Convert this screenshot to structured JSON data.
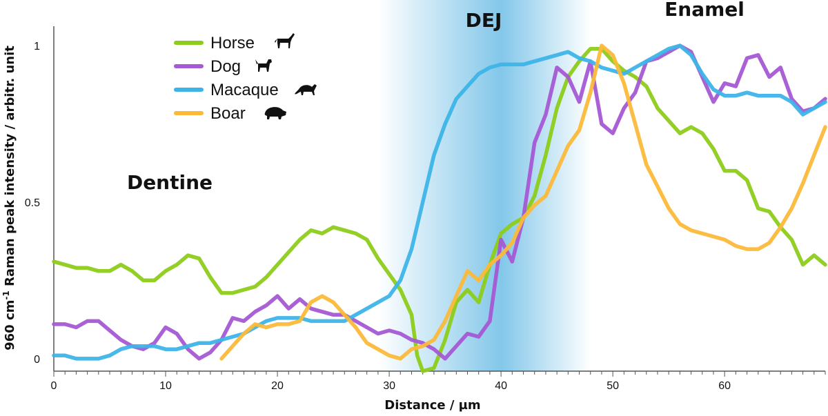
{
  "chart_data": {
    "type": "line",
    "title": "",
    "xlabel": "Distance / µm",
    "ylabel_main": "960 cm",
    "ylabel_sup": "-1",
    "ylabel_rest": " Raman peak intensity / arbitr. unit",
    "xlim": [
      0,
      69
    ],
    "ylim": [
      -0.04,
      1.04
    ],
    "xticks": [
      0,
      10,
      20,
      30,
      40,
      50,
      60
    ],
    "yticks": [
      0,
      0.5,
      1
    ],
    "ytick_labels": [
      "0",
      "0.5",
      "1"
    ],
    "regions": [
      {
        "label": "Dentine"
      },
      {
        "label": "DEJ"
      },
      {
        "label": "Enamel"
      }
    ],
    "dej_band": {
      "start": 29,
      "end": 48,
      "center": 40,
      "color": "#7cc4e8"
    },
    "legend_position": "top-left",
    "series": [
      {
        "name": "Horse",
        "icon": "horse-icon",
        "color": "#8dcc1a",
        "x": [
          0,
          1,
          2,
          3,
          4,
          5,
          6,
          7,
          8,
          9,
          10,
          11,
          12,
          13,
          14,
          15,
          16,
          17,
          18,
          19,
          20,
          21,
          22,
          23,
          24,
          25,
          26,
          27,
          28,
          29,
          30,
          31,
          32,
          32.5,
          33,
          34,
          35,
          36,
          37,
          38,
          39,
          40,
          41,
          42,
          43,
          44,
          45,
          46,
          47,
          48,
          49,
          50,
          51,
          52,
          53,
          54,
          55,
          56,
          57,
          58,
          59,
          60,
          61,
          62,
          63,
          64,
          65,
          66,
          67,
          68,
          69
        ],
        "y": [
          0.31,
          0.3,
          0.29,
          0.29,
          0.28,
          0.28,
          0.3,
          0.28,
          0.25,
          0.25,
          0.28,
          0.3,
          0.33,
          0.32,
          0.26,
          0.21,
          0.21,
          0.22,
          0.23,
          0.26,
          0.3,
          0.34,
          0.38,
          0.41,
          0.4,
          0.42,
          0.41,
          0.4,
          0.38,
          0.32,
          0.27,
          0.22,
          0.14,
          0.01,
          -0.04,
          -0.03,
          0.06,
          0.18,
          0.22,
          0.18,
          0.3,
          0.4,
          0.43,
          0.45,
          0.52,
          0.65,
          0.8,
          0.9,
          0.95,
          0.99,
          0.99,
          0.95,
          0.92,
          0.9,
          0.87,
          0.8,
          0.76,
          0.72,
          0.74,
          0.72,
          0.67,
          0.6,
          0.6,
          0.57,
          0.48,
          0.47,
          0.42,
          0.38,
          0.3,
          0.33,
          0.3
        ]
      },
      {
        "name": "Dog",
        "icon": "dog-icon",
        "color": "#a559d4",
        "x": [
          0,
          1,
          2,
          3,
          4,
          5,
          6,
          7,
          8,
          9,
          10,
          11,
          12,
          13,
          14,
          15,
          16,
          17,
          18,
          19,
          20,
          21,
          22,
          23,
          24,
          25,
          26,
          27,
          28,
          29,
          30,
          31,
          32,
          33,
          34,
          35,
          36,
          37,
          38,
          39,
          40,
          41,
          42,
          43,
          44,
          45,
          46,
          47,
          48,
          49,
          50,
          51,
          52,
          53,
          54,
          55,
          56,
          57,
          58,
          59,
          60,
          61,
          62,
          63,
          64,
          65,
          66,
          67,
          68,
          69
        ],
        "y": [
          0.11,
          0.11,
          0.1,
          0.12,
          0.12,
          0.09,
          0.06,
          0.04,
          0.03,
          0.05,
          0.1,
          0.08,
          0.03,
          0.0,
          0.02,
          0.06,
          0.13,
          0.12,
          0.15,
          0.17,
          0.2,
          0.16,
          0.19,
          0.16,
          0.15,
          0.14,
          0.14,
          0.12,
          0.1,
          0.08,
          0.09,
          0.08,
          0.06,
          0.05,
          0.03,
          0.0,
          0.04,
          0.08,
          0.07,
          0.12,
          0.38,
          0.31,
          0.45,
          0.69,
          0.78,
          0.93,
          0.9,
          0.82,
          0.95,
          0.75,
          0.72,
          0.8,
          0.85,
          0.95,
          0.96,
          0.98,
          1.0,
          0.98,
          0.9,
          0.82,
          0.88,
          0.87,
          0.96,
          0.97,
          0.9,
          0.93,
          0.83,
          0.79,
          0.8,
          0.83
        ]
      },
      {
        "name": "Macaque",
        "icon": "macaque-icon",
        "color": "#3db4e8",
        "x": [
          0,
          1,
          2,
          3,
          4,
          5,
          6,
          7,
          8,
          9,
          10,
          11,
          12,
          13,
          14,
          15,
          16,
          17,
          18,
          19,
          20,
          21,
          22,
          23,
          24,
          25,
          26,
          27,
          28,
          29,
          30,
          31,
          32,
          33,
          34,
          35,
          36,
          37,
          38,
          39,
          40,
          41,
          42,
          43,
          44,
          45,
          46,
          47,
          48,
          49,
          50,
          51,
          52,
          53,
          54,
          55,
          56,
          57,
          58,
          59,
          60,
          61,
          62,
          63,
          64,
          65,
          66,
          67,
          68,
          69
        ],
        "y": [
          0.01,
          0.01,
          0.0,
          0.0,
          0.0,
          0.01,
          0.03,
          0.04,
          0.04,
          0.04,
          0.03,
          0.03,
          0.04,
          0.05,
          0.05,
          0.06,
          0.07,
          0.08,
          0.1,
          0.12,
          0.13,
          0.13,
          0.13,
          0.12,
          0.12,
          0.12,
          0.12,
          0.14,
          0.16,
          0.18,
          0.2,
          0.25,
          0.35,
          0.5,
          0.65,
          0.75,
          0.83,
          0.87,
          0.91,
          0.93,
          0.94,
          0.94,
          0.94,
          0.95,
          0.96,
          0.97,
          0.98,
          0.96,
          0.95,
          0.93,
          0.92,
          0.91,
          0.93,
          0.95,
          0.97,
          0.99,
          1.0,
          0.97,
          0.91,
          0.86,
          0.84,
          0.84,
          0.85,
          0.84,
          0.84,
          0.84,
          0.82,
          0.78,
          0.8,
          0.82
        ]
      },
      {
        "name": "Boar",
        "icon": "boar-icon",
        "color": "#fbb93a",
        "x": [
          15,
          16,
          17,
          18,
          19,
          20,
          21,
          22,
          23,
          24,
          25,
          26,
          27,
          28,
          29,
          30,
          31,
          32,
          33,
          34,
          35,
          36,
          37,
          38,
          39,
          40,
          41,
          42,
          43,
          44,
          45,
          46,
          47,
          48,
          49,
          50,
          51,
          52,
          53,
          54,
          55,
          56,
          57,
          58,
          59,
          60,
          61,
          62,
          63,
          64,
          65,
          66,
          67,
          68,
          69
        ],
        "y": [
          0.0,
          0.04,
          0.08,
          0.11,
          0.1,
          0.11,
          0.11,
          0.12,
          0.18,
          0.2,
          0.18,
          0.14,
          0.1,
          0.05,
          0.03,
          0.01,
          0.0,
          0.03,
          0.04,
          0.06,
          0.12,
          0.2,
          0.28,
          0.25,
          0.3,
          0.33,
          0.37,
          0.45,
          0.49,
          0.52,
          0.6,
          0.68,
          0.73,
          0.85,
          1.0,
          0.97,
          0.88,
          0.75,
          0.62,
          0.55,
          0.48,
          0.43,
          0.41,
          0.4,
          0.39,
          0.38,
          0.36,
          0.35,
          0.35,
          0.37,
          0.42,
          0.48,
          0.56,
          0.65,
          0.74
        ]
      }
    ]
  }
}
